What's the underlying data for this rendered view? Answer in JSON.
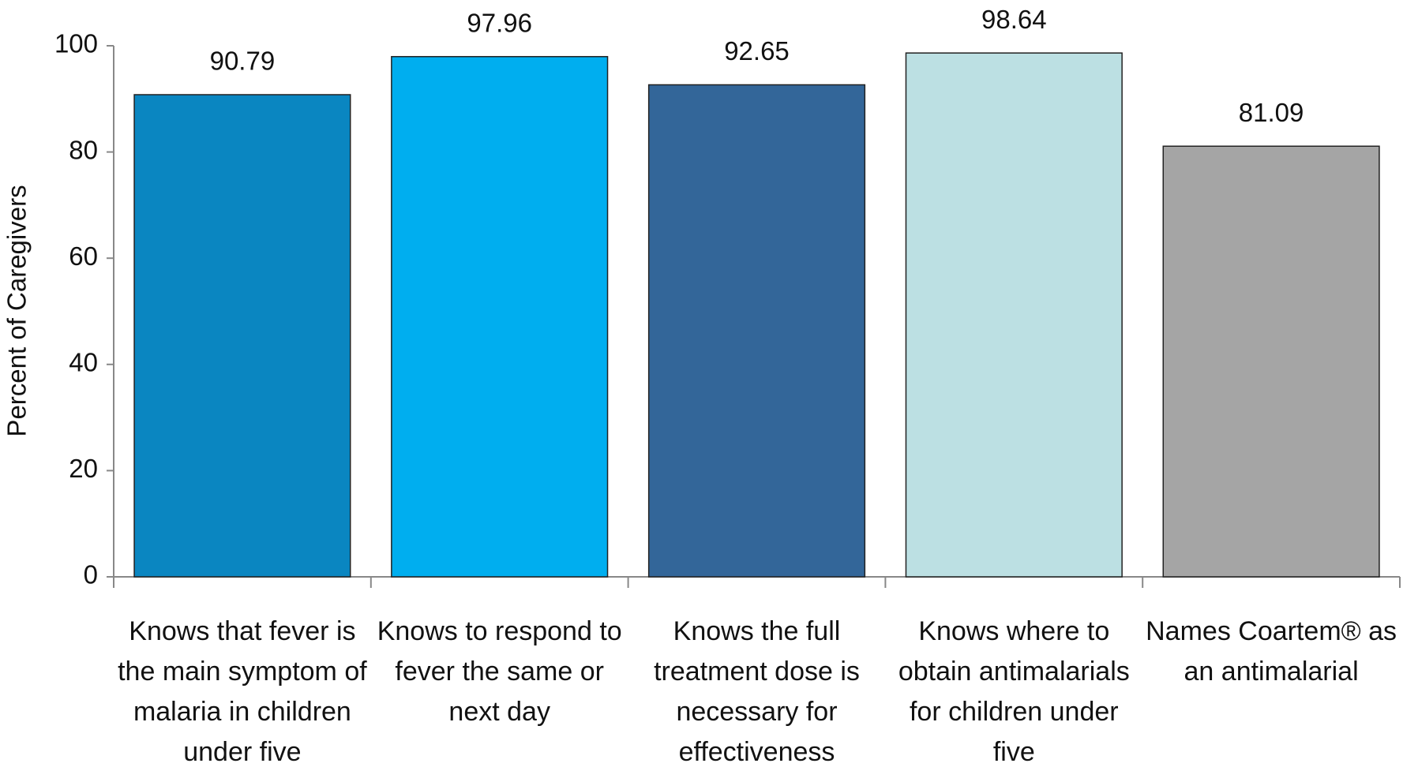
{
  "chart_data": {
    "type": "bar",
    "y_label": "Percent of Caregivers",
    "categories": [
      "Knows that fever is the main symptom of malaria in children under five",
      "Knows to respond to fever the same or next day",
      "Knows the full treatment dose is necessary for effectiveness",
      "Knows where to obtain antimalarials for children under five",
      "Names Coartem® as an antimalarial"
    ],
    "values": [
      90.79,
      97.96,
      92.65,
      98.64,
      81.09
    ],
    "colors": [
      "#0a86c1",
      "#00aeef",
      "#336699",
      "#bce0e3",
      "#a5a5a5"
    ],
    "ylim": [
      0,
      100
    ],
    "yticks": [
      0,
      20,
      40,
      60,
      80,
      100
    ],
    "grid": false
  }
}
